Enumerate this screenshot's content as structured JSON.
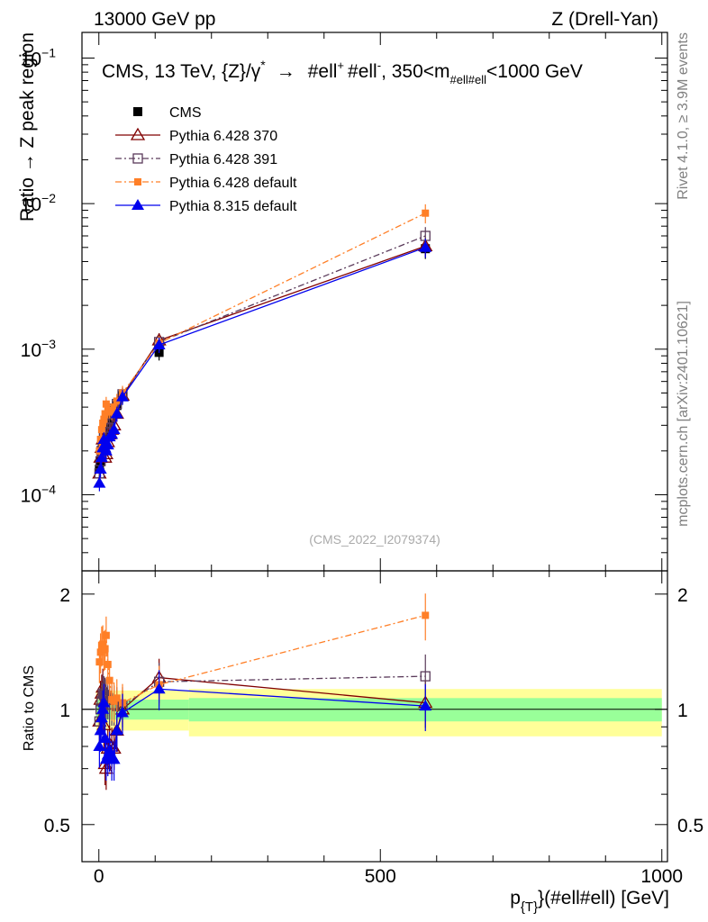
{
  "header": {
    "left": "13000 GeV pp",
    "right": "Z (Drell-Yan)"
  },
  "side": {
    "rivet": "Rivet 4.1.0, ≥ 3.9M events",
    "mcplots": "mcplots.cern.ch [arXiv:2401.10621]"
  },
  "chart_data": {
    "type": "line",
    "title": "CMS, 13 TeV, {Z}/γ* → #ell⁺ #ell⁻, 350<m_#ell#ell<1000 GeV",
    "title_parts": {
      "main": "CMS, 13 TeV, {Z}/γ",
      "star": "*",
      "arrow": "→",
      "l1": "#ell",
      "plus": "+",
      "l2": "#ell",
      "minus": "-",
      "mass_pre": ", 350<m",
      "mass_sub": "#ell#ell",
      "mass_post": "<1000 GeV"
    },
    "analysis_id": "(CMS_2022_I2079374)",
    "xlabel_main": "p",
    "xlabel_sub": "{T}",
    "xlabel_rest": "}(#ell#ell) [GeV]",
    "ylabel": "Ratio → Z peak region",
    "ratio_ylabel": "Ratio to CMS",
    "xlim": [
      -30,
      1010
    ],
    "ylim": [
      3e-05,
      0.15
    ],
    "ratio_ylim": [
      0.4,
      2.3
    ],
    "log_y": true,
    "x_ticks": [
      "0",
      "500",
      "1000"
    ],
    "y_ticks": [
      "10⁻⁴",
      "10⁻³",
      "10⁻²",
      "10⁻¹"
    ],
    "y_tick_base": "10",
    "y_tick_exps": [
      "−4",
      "−3",
      "−2",
      "−1"
    ],
    "ratio_ticks": [
      "0.5",
      "1",
      "2"
    ],
    "x": [
      1,
      3,
      5,
      7,
      9,
      11,
      13,
      16,
      19,
      23,
      27,
      32,
      42,
      107,
      580
    ],
    "series": [
      {
        "name": "CMS",
        "color": "#000000",
        "values": [
          0.00015,
          0.00017,
          0.00019,
          0.00021,
          0.00023,
          0.00025,
          0.00027,
          0.00029,
          0.00032,
          0.00035,
          0.00038,
          0.00041,
          0.00048,
          0.00095,
          0.0049
        ]
      },
      {
        "name": "Pythia 6.428 370",
        "color": "#800000",
        "values": [
          0.00014,
          0.00018,
          0.00021,
          0.00024,
          0.00021,
          0.00018,
          0.00019,
          0.00023,
          0.00026,
          0.00028,
          0.0003,
          0.00036,
          0.00048,
          0.00115,
          0.0051
        ]
      },
      {
        "name": "Pythia 6.428 391",
        "color": "#5a3a5a",
        "values": [
          0.00014,
          0.00017,
          0.0002,
          0.00023,
          0.00025,
          0.00027,
          0.00029,
          0.00031,
          0.00033,
          0.00036,
          0.00039,
          0.00042,
          0.00049,
          0.00112,
          0.006
        ]
      },
      {
        "name": "Pythia 6.428 default",
        "color": "#ff7f27",
        "values": [
          0.0002,
          0.00024,
          0.00028,
          0.00031,
          0.00033,
          0.00036,
          0.00042,
          0.00038,
          0.00038,
          0.00037,
          0.0004,
          0.00044,
          0.0005,
          0.0011,
          0.0086
        ]
      },
      {
        "name": "Pythia 8.315 default",
        "color": "#0000ee",
        "values": [
          0.00012,
          0.00015,
          0.00018,
          0.00021,
          0.00024,
          0.00021,
          0.0002,
          0.00022,
          0.00025,
          0.00026,
          0.00028,
          0.00036,
          0.00047,
          0.00107,
          0.005
        ]
      }
    ],
    "ratio_series": [
      {
        "name": "Pythia 6.428 370",
        "values": [
          0.93,
          1.06,
          1.1,
          1.14,
          0.91,
          0.72,
          0.7,
          0.79,
          0.81,
          0.8,
          0.79,
          0.88,
          1.0,
          1.21,
          1.04
        ]
      },
      {
        "name": "Pythia 6.428 391",
        "values": [
          0.93,
          1.0,
          1.05,
          1.1,
          1.09,
          1.08,
          1.07,
          1.07,
          1.03,
          1.03,
          1.03,
          1.02,
          1.02,
          1.18,
          1.22
        ]
      },
      {
        "name": "Pythia 6.428 default",
        "values": [
          1.33,
          1.41,
          1.47,
          1.48,
          1.43,
          1.44,
          1.56,
          1.31,
          1.19,
          1.06,
          1.05,
          1.07,
          1.04,
          1.16,
          1.76
        ]
      },
      {
        "name": "Pythia 8.315 default",
        "values": [
          0.8,
          0.88,
          0.95,
          1.0,
          1.04,
          0.84,
          0.74,
          0.76,
          0.78,
          0.74,
          0.74,
          0.88,
          0.98,
          1.13,
          1.02
        ]
      }
    ],
    "band_inner": [
      {
        "x0": -5,
        "x1": 160,
        "lo": 0.94,
        "hi": 1.06
      },
      {
        "x0": 160,
        "x1": 1000,
        "lo": 0.93,
        "hi": 1.07
      }
    ],
    "band_outer": [
      {
        "x0": -5,
        "x1": 160,
        "lo": 0.88,
        "hi": 1.12
      },
      {
        "x0": 160,
        "x1": 1000,
        "lo": 0.85,
        "hi": 1.13
      }
    ],
    "band_colors": {
      "outer": "#ffff99",
      "inner": "#99ff99"
    }
  }
}
